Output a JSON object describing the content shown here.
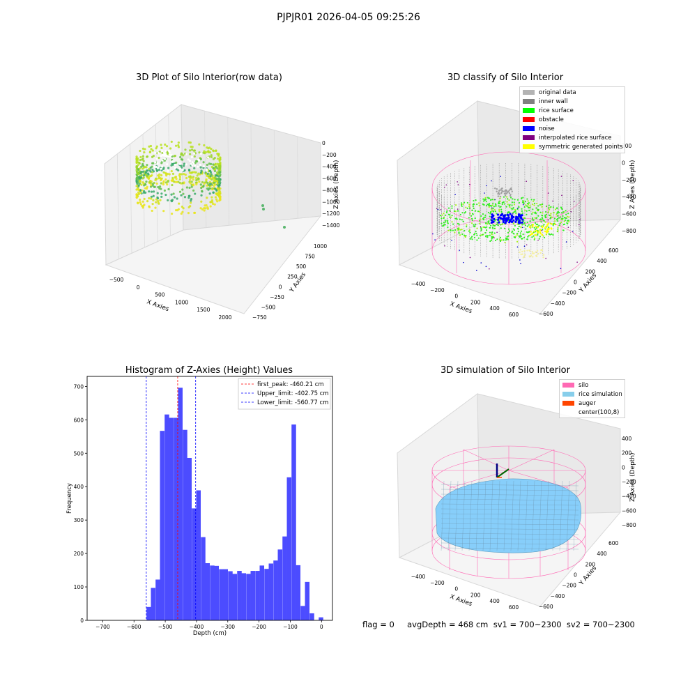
{
  "figure": {
    "title": "PJPJR01 2026-04-05 09:25:26",
    "footer": "flag = 0     avgDepth = 468 cm  sv1 = 700~2300  sv2 = 700~2300"
  },
  "colors": {
    "histogram_bar": "#4c4cff",
    "peak_line": "#ff0000",
    "limit_line": "#0000ff",
    "silo_wire": "#ff69b4",
    "rice_sim": "#87cefa",
    "auger": "#ff4500",
    "inner_wall": "#808080",
    "rice_surface": "#00ff00",
    "noise": "#0000ff",
    "symmetric": "#ffff00"
  },
  "chart_data": [
    {
      "type": "scatter",
      "title": "3D Plot of Silo Interior(row data)",
      "xlabel": "X Axies",
      "ylabel": "Y Axies",
      "zlabel": "Z Axies (Depth)",
      "x_ticks": [
        "−500",
        "0",
        "500",
        "1000",
        "1500",
        "2000"
      ],
      "y_ticks": [
        "−750",
        "−500",
        "−250",
        "0",
        "250",
        "500",
        "750",
        "1000"
      ],
      "z_ticks": [
        "0",
        "−200",
        "−400",
        "−600",
        "−800",
        "−1000",
        "−1200",
        "−1400"
      ]
    },
    {
      "type": "scatter",
      "title": "3D classify of Silo Interior",
      "xlabel": "X Axies",
      "ylabel": "Y Axies",
      "zlabel": "Z Axies (Depth)",
      "x_ticks": [
        "−400",
        "−200",
        "0",
        "200",
        "400",
        "600"
      ],
      "y_ticks": [
        "−600",
        "−400",
        "−200",
        "0",
        "200",
        "400",
        "600"
      ],
      "z_ticks": [
        "200",
        "0",
        "−200",
        "−400",
        "−600",
        "−800"
      ],
      "legend": [
        {
          "label": "original data",
          "color": "#b3b3b3"
        },
        {
          "label": "inner wall",
          "color": "#808080"
        },
        {
          "label": "rice surface",
          "color": "#00ff00"
        },
        {
          "label": "obstacle",
          "color": "#ff0000"
        },
        {
          "label": "noise",
          "color": "#0000ff"
        },
        {
          "label": "interpolated rice surface",
          "color": "#800080"
        },
        {
          "label": "symmetric generated points",
          "color": "#ffff00"
        }
      ]
    },
    {
      "type": "bar",
      "title": "Histogram of Z-Axies (Height) Values",
      "xlabel": "Depth (cm)",
      "ylabel": "Frequency",
      "xlim": [
        -750,
        35
      ],
      "ylim": [
        0,
        730
      ],
      "x_ticks": [
        -700,
        -600,
        -500,
        -400,
        -300,
        -200,
        -100,
        0
      ],
      "y_ticks": [
        0,
        100,
        200,
        300,
        400,
        500,
        600,
        700
      ],
      "bin_width": 14.5,
      "bins": [
        {
          "x": -560,
          "value": 40
        },
        {
          "x": -546,
          "value": 97
        },
        {
          "x": -531,
          "value": 122
        },
        {
          "x": -517,
          "value": 567
        },
        {
          "x": -502,
          "value": 616
        },
        {
          "x": -488,
          "value": 606
        },
        {
          "x": -473,
          "value": 606
        },
        {
          "x": -459,
          "value": 696
        },
        {
          "x": -444,
          "value": 570
        },
        {
          "x": -430,
          "value": 486
        },
        {
          "x": -415,
          "value": 335
        },
        {
          "x": -401,
          "value": 389
        },
        {
          "x": -386,
          "value": 249
        },
        {
          "x": -372,
          "value": 171
        },
        {
          "x": -357,
          "value": 164
        },
        {
          "x": -343,
          "value": 163
        },
        {
          "x": -328,
          "value": 153
        },
        {
          "x": -314,
          "value": 153
        },
        {
          "x": -299,
          "value": 147
        },
        {
          "x": -285,
          "value": 139
        },
        {
          "x": -270,
          "value": 148
        },
        {
          "x": -256,
          "value": 141
        },
        {
          "x": -241,
          "value": 139
        },
        {
          "x": -227,
          "value": 148
        },
        {
          "x": -212,
          "value": 148
        },
        {
          "x": -198,
          "value": 164
        },
        {
          "x": -183,
          "value": 154
        },
        {
          "x": -169,
          "value": 170
        },
        {
          "x": -154,
          "value": 179
        },
        {
          "x": -140,
          "value": 212
        },
        {
          "x": -125,
          "value": 251
        },
        {
          "x": -111,
          "value": 428
        },
        {
          "x": -96,
          "value": 586
        },
        {
          "x": -82,
          "value": 165
        },
        {
          "x": -67,
          "value": 43
        },
        {
          "x": -53,
          "value": 115
        },
        {
          "x": -38,
          "value": 21
        },
        {
          "x": -24,
          "value": 0
        },
        {
          "x": -9,
          "value": 9
        }
      ],
      "vlines": [
        {
          "x": -460.21,
          "label": "first_peak: -460.21 cm",
          "color": "#ff0000"
        },
        {
          "x": -402.75,
          "label": "Upper_limit: -402.75 cm",
          "color": "#0000ff"
        },
        {
          "x": -560.77,
          "label": "Lower_limit: -560.77 cm",
          "color": "#0000ff"
        }
      ],
      "legend_position": "top-right"
    },
    {
      "type": "scatter",
      "title": "3D simulation of Silo Interior",
      "xlabel": "X Axies",
      "ylabel": "Y Axies",
      "zlabel": "Z Axies (Depth)",
      "x_ticks": [
        "−400",
        "−200",
        "0",
        "200",
        "400",
        "600"
      ],
      "y_ticks": [
        "−600",
        "−400",
        "−200",
        "0",
        "200",
        "400",
        "600"
      ],
      "z_ticks": [
        "400",
        "200",
        "0",
        "−200",
        "−400",
        "−600",
        "−800"
      ],
      "legend": [
        {
          "label": "silo",
          "color": "#ff69b4"
        },
        {
          "label": "rice simulation",
          "color": "#87ceeb"
        },
        {
          "label": "auger",
          "color": "#ff4500"
        },
        {
          "label": "center(100,8)",
          "color": ""
        }
      ]
    }
  ]
}
